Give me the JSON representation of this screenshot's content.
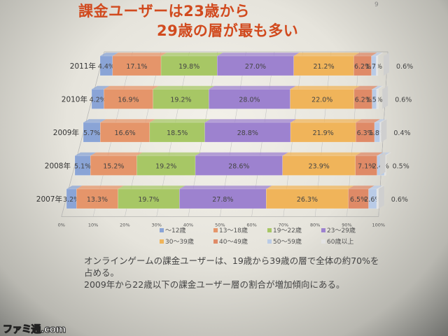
{
  "slide_number": "9",
  "title": {
    "line1": "課金ユーザーは23歳から29歳の層が最も多い"
  },
  "caption": {
    "line1": "オンラインゲームの課金ユーザーは、19歳から39歳の層で全体の約70%を",
    "line2": "占める。",
    "line3": "2009年から22歳以下の課金ユーザー層の割合が増加傾向にある。"
  },
  "watermark": "ファミ通.com",
  "chart_data": {
    "type": "bar",
    "orientation": "horizontal",
    "stacked": true,
    "percent_stacked": true,
    "categories": [
      "2011年",
      "2010年",
      "2009年",
      "2008年",
      "2007年"
    ],
    "xlim": [
      0,
      100
    ],
    "x_tick_labels": [
      "0%",
      "10%",
      "20%",
      "30%",
      "40%",
      "50%",
      "60%",
      "70%",
      "80%",
      "90%",
      "100%"
    ],
    "legend_position": "bottom",
    "series": [
      {
        "name": "～12歳",
        "color": "#8aa4d6",
        "values": [
          4.4,
          4.2,
          5.7,
          5.1,
          3.2
        ],
        "labels": [
          "4.4%",
          "4.2%",
          "5.7%",
          "5.1%",
          "3.2%"
        ]
      },
      {
        "name": "13～18歳",
        "color": "#e5956a",
        "values": [
          17.1,
          16.9,
          16.6,
          15.2,
          13.3
        ],
        "labels": [
          "17.1%",
          "16.9%",
          "16.6%",
          "15.2%",
          "13.3%"
        ]
      },
      {
        "name": "19～22歳",
        "color": "#a7c765",
        "values": [
          19.8,
          19.2,
          18.5,
          19.2,
          19.7
        ],
        "labels": [
          "19.8%",
          "19.2%",
          "18.5%",
          "19.2%",
          "19.7%"
        ]
      },
      {
        "name": "23～29歳",
        "color": "#9d82cf",
        "values": [
          27.0,
          28.0,
          28.8,
          28.6,
          27.8
        ],
        "labels": [
          "27.0%",
          "28.0%",
          "28.8%",
          "28.6%",
          "27.8%"
        ]
      },
      {
        "name": "30～39歳",
        "color": "#f0b45a",
        "values": [
          21.2,
          22.0,
          21.9,
          23.9,
          26.3
        ],
        "labels": [
          "21.2%",
          "22.0%",
          "21.9%",
          "23.9%",
          "26.3%"
        ]
      },
      {
        "name": "40～49歳",
        "color": "#df8a67",
        "values": [
          6.2,
          6.2,
          6.3,
          7.1,
          6.5
        ],
        "labels": [
          "6.2%",
          "6.2%",
          "6.3%",
          "7.1%",
          "6.5%"
        ]
      },
      {
        "name": "50～59歳",
        "color": "#b9cbe7",
        "values": [
          1.7,
          1.5,
          1.8,
          2.4,
          2.6
        ],
        "labels": [
          "1.7%",
          "1.5%",
          "1.8%",
          "2.4%",
          "2.6%"
        ]
      },
      {
        "name": "60歳以上",
        "color": "#e3e3e3",
        "values": [
          0.6,
          0.6,
          0.4,
          0.5,
          0.6
        ],
        "labels": [
          "0.6%",
          "0.6%",
          "0.4%",
          "0.5%",
          "0.6%"
        ]
      }
    ]
  }
}
